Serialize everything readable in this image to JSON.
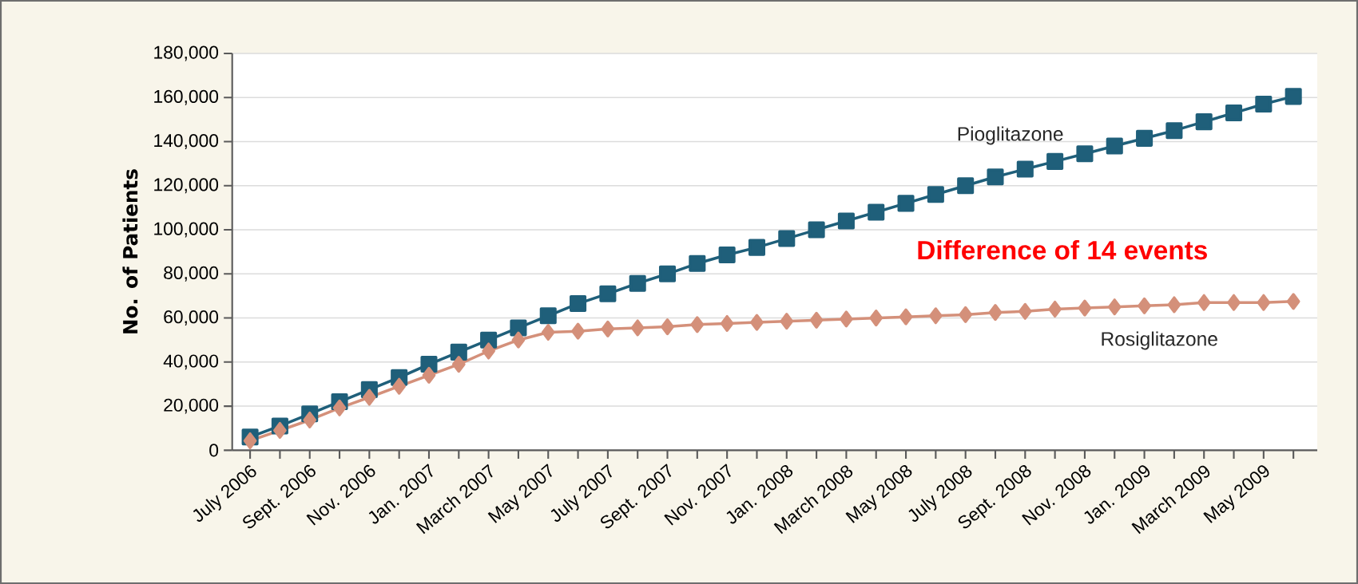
{
  "chart_data": {
    "type": "line",
    "ylabel": "No. of Patients",
    "categories": [
      "July 2006",
      null,
      "Sept. 2006",
      null,
      "Nov. 2006",
      null,
      "Jan. 2007",
      null,
      "March 2007",
      null,
      "May 2007",
      null,
      "July 2007",
      null,
      "Sept. 2007",
      null,
      "Nov. 2007",
      null,
      "Jan. 2008",
      null,
      "March 2008",
      null,
      "May 2008",
      null,
      "July 2008",
      null,
      "Sept. 2008",
      null,
      "Nov. 2008",
      null,
      "Jan. 2009",
      null,
      "March 2009",
      null,
      "May 2009",
      null
    ],
    "series": [
      {
        "name": "Pioglitazone",
        "color": "#1f5f7a",
        "marker": "square",
        "values": [
          6000,
          11000,
          16500,
          22000,
          27500,
          33000,
          39000,
          44500,
          50000,
          55500,
          61000,
          66500,
          71000,
          75700,
          80000,
          84700,
          88600,
          92000,
          96000,
          100000,
          104000,
          108000,
          112000,
          116000,
          120000,
          124000,
          127500,
          131000,
          134500,
          138000,
          141500,
          145000,
          149000,
          153000,
          157000,
          160500
        ]
      },
      {
        "name": "Rosiglitazone",
        "color": "#d4907a",
        "marker": "diamond",
        "values": [
          4300,
          9000,
          13700,
          19200,
          24000,
          29000,
          34000,
          39000,
          45000,
          50000,
          53500,
          54000,
          55000,
          55500,
          56000,
          57000,
          57500,
          58000,
          58500,
          59000,
          59500,
          60000,
          60500,
          61000,
          61500,
          62500,
          63000,
          64000,
          64500,
          65000,
          65500,
          66000,
          67000,
          67000,
          67000,
          67500
        ]
      }
    ],
    "ylim": [
      0,
      180000
    ],
    "yticks": [
      0,
      {
        "value": 20000,
        "label": "20,000"
      },
      {
        "value": 40000,
        "label": "40,000"
      },
      {
        "value": 60000,
        "label": "60,000"
      },
      {
        "value": 80000,
        "label": "80,000"
      },
      {
        "value": 100000,
        "label": "100,000"
      },
      {
        "value": 120000,
        "label": "120,000"
      },
      {
        "value": 140000,
        "label": "140,000"
      },
      {
        "value": 160000,
        "label": "160,000"
      },
      {
        "value": 180000,
        "label": "180,000"
      }
    ],
    "grid": "y",
    "legend": false,
    "line_style": "solid",
    "annotations": [
      "Difference of 14 events"
    ]
  }
}
